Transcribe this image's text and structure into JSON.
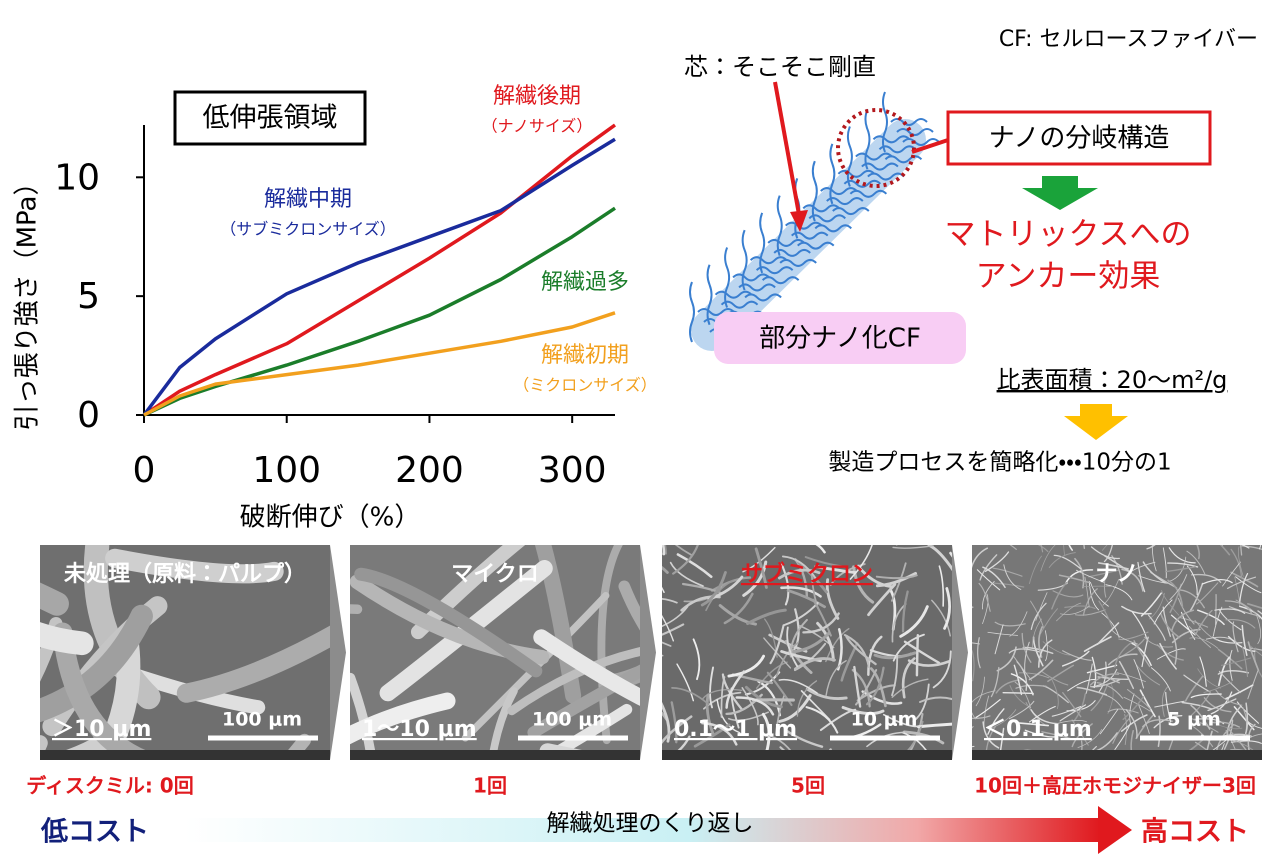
{
  "chart_data": {
    "type": "line",
    "box_label": "低伸張領域",
    "x_label": "破断伸び（%）",
    "y_label": "引っ張り強さ（MPa）",
    "x": [
      0,
      25,
      50,
      100,
      150,
      200,
      250,
      300,
      330
    ],
    "xlim": [
      0,
      330
    ],
    "xticks": [
      0,
      100,
      200,
      300
    ],
    "ylim": [
      0,
      12.2
    ],
    "yticks": [
      0,
      5,
      10
    ],
    "series": [
      {
        "name": "解繊後期",
        "sublabel": "（ナノサイズ）",
        "color": "#e0191e",
        "values": [
          0,
          1.0,
          1.7,
          3.0,
          4.8,
          6.6,
          8.5,
          10.9,
          12.2
        ]
      },
      {
        "name": "解繊中期",
        "sublabel": "（サブミクロンサイズ）",
        "color": "#1a2b9c",
        "values": [
          0,
          2.0,
          3.2,
          5.1,
          6.4,
          7.5,
          8.6,
          10.5,
          11.6
        ]
      },
      {
        "name": "解繊過多",
        "color": "#1b7d2a",
        "values": [
          0,
          0.7,
          1.2,
          2.1,
          3.1,
          4.2,
          5.7,
          7.5,
          8.7
        ]
      },
      {
        "name": "解繊初期",
        "sublabel": "（ミクロンサイズ）",
        "color": "#f2a01e",
        "values": [
          0,
          0.8,
          1.3,
          1.7,
          2.1,
          2.6,
          3.1,
          3.7,
          4.3
        ]
      }
    ]
  },
  "diagram": {
    "note": "CF: セルロースファイバー",
    "core_label": "芯：そこそこ剛直",
    "branch_label": "ナノの分岐構造",
    "effect_lines": [
      "マトリックスへの",
      "アンカー効果"
    ],
    "fiber_label": "部分ナノ化CF",
    "surface_area": "比表面積：20～m²/g",
    "process": "製造プロセスを簡略化・・・10分の1"
  },
  "panels": [
    {
      "title": "未処理（原料：パルプ）",
      "size": "＞10 μm",
      "scale": "100 μm",
      "count": "ディスクミル: 0回"
    },
    {
      "title": "マイクロ",
      "size": "1～10 μm",
      "scale": "100 μm",
      "count": "1回"
    },
    {
      "title": "サブミクロン",
      "size": "0.1～1 μm",
      "scale": "10 μm",
      "count": "5回"
    },
    {
      "title": "ナノ",
      "size": "＜0.1 μm",
      "scale": "5 μm",
      "count": "10回＋高圧ホモジナイザー3回"
    }
  ],
  "cost_bar": {
    "low": "低コスト",
    "process": "解繊処理のくり返し",
    "high": "高コスト"
  }
}
